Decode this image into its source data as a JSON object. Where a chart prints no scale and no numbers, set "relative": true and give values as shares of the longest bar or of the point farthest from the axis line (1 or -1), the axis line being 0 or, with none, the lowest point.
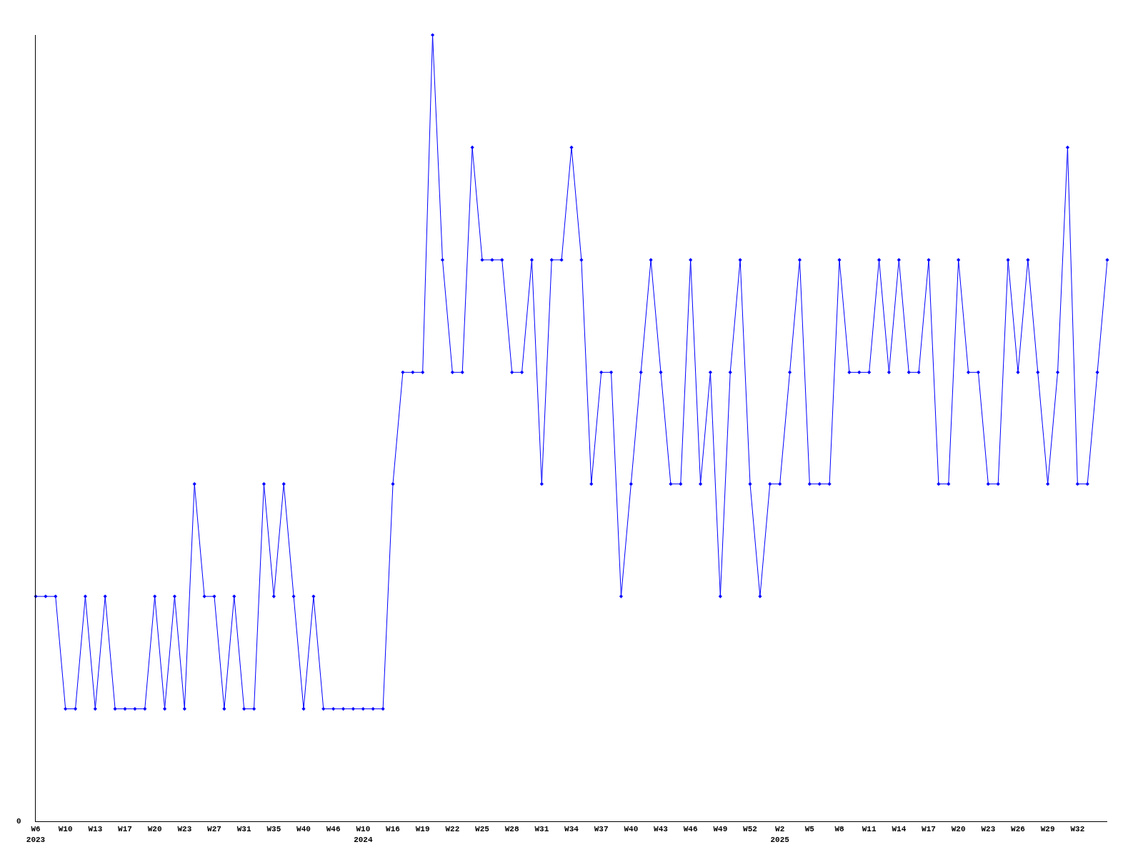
{
  "chart_data": {
    "type": "line",
    "relative": true,
    "color": "#0000ff",
    "marker": "diamond",
    "line_style": "solid",
    "grid": false,
    "legend": false,
    "annotations": [
      "0"
    ],
    "categories": [
      "W6\n2023",
      null,
      null,
      "W10",
      null,
      null,
      "W13",
      null,
      null,
      "W17",
      null,
      null,
      "W20",
      null,
      null,
      "W23",
      null,
      null,
      "W27",
      null,
      null,
      "W31",
      null,
      null,
      "W35",
      null,
      null,
      "W40",
      null,
      null,
      "W46",
      null,
      null,
      "W10\n2024",
      null,
      null,
      "W16",
      null,
      null,
      "W19",
      null,
      null,
      "W22",
      null,
      null,
      "W25",
      null,
      null,
      "W28",
      null,
      null,
      "W31",
      null,
      null,
      "W34",
      null,
      null,
      "W37",
      null,
      null,
      "W40",
      null,
      null,
      "W43",
      null,
      null,
      "W46",
      null,
      null,
      "W49",
      null,
      null,
      "W52",
      null,
      null,
      "W2\n2025",
      null,
      null,
      "W5",
      null,
      null,
      "W8",
      null,
      null,
      "W11",
      null,
      null,
      "W14",
      null,
      null,
      "W17",
      null,
      null,
      "W20",
      null,
      null,
      "W23",
      null,
      null,
      "W26",
      null,
      null,
      "W29",
      null,
      null,
      "W32",
      null,
      null,
      null
    ],
    "values": [
      0.286,
      0.286,
      0.286,
      0.143,
      0.143,
      0.286,
      0.143,
      0.286,
      0.143,
      0.143,
      0.143,
      0.143,
      0.286,
      0.143,
      0.286,
      0.143,
      0.429,
      0.286,
      0.286,
      0.143,
      0.286,
      0.143,
      0.143,
      0.429,
      0.286,
      0.429,
      0.286,
      0.143,
      0.286,
      0.143,
      0.143,
      0.143,
      0.143,
      0.143,
      0.143,
      0.143,
      0.429,
      0.571,
      0.571,
      0.571,
      1,
      0.714,
      0.571,
      0.571,
      0.857,
      0.714,
      0.714,
      0.714,
      0.571,
      0.571,
      0.714,
      0.429,
      0.714,
      0.714,
      0.857,
      0.714,
      0.429,
      0.571,
      0.571,
      0.286,
      0.429,
      0.571,
      0.714,
      0.571,
      0.429,
      0.429,
      0.714,
      0.429,
      0.571,
      0.286,
      0.571,
      0.714,
      0.429,
      0.286,
      0.429,
      0.429,
      0.571,
      0.714,
      0.429,
      0.429,
      0.429,
      0.714,
      0.571,
      0.571,
      0.571,
      0.714,
      0.571,
      0.714,
      0.571,
      0.571,
      0.714,
      0.429,
      0.429,
      0.714,
      0.571,
      0.571,
      0.429,
      0.429,
      0.714,
      0.571,
      0.714,
      0.571,
      0.429,
      0.571,
      0.857,
      0.429,
      0.429,
      0.571,
      0.714
    ]
  }
}
